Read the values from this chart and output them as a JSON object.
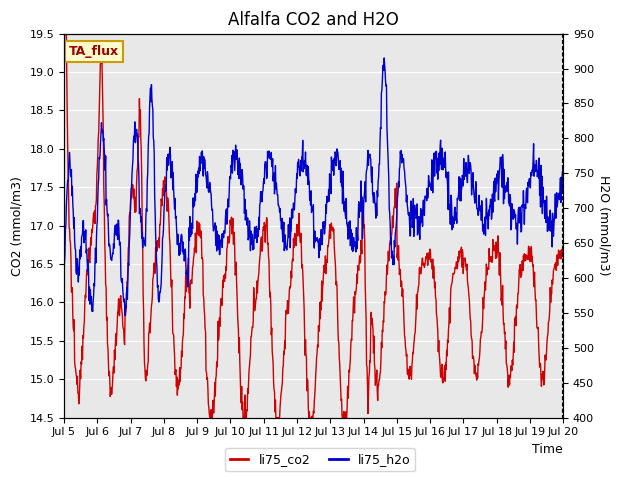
{
  "title": "Alfalfa CO2 and H2O",
  "xlabel": "Time",
  "ylabel_left": "CO2 (mmol/m3)",
  "ylabel_right": "H2O (mmol/m3)",
  "ylim_left": [
    14.5,
    19.5
  ],
  "ylim_right": [
    400,
    950
  ],
  "xlim": [
    0,
    360
  ],
  "xtick_positions": [
    0,
    24,
    48,
    72,
    96,
    120,
    144,
    168,
    192,
    216,
    240,
    264,
    288,
    312,
    336,
    360
  ],
  "xtick_labels": [
    "Jul 5",
    "Jul 6",
    "Jul 7",
    "Jul 8",
    "Jul 9",
    "Jul 10",
    "Jul 11",
    "Jul 12",
    "Jul 13",
    "Jul 14",
    "Jul 15",
    "Jul 16",
    "Jul 17",
    "Jul 18",
    "Jul 19",
    "Jul 20"
  ],
  "legend_labels": [
    "li75_co2",
    "li75_h2o"
  ],
  "legend_colors": [
    "#cc0000",
    "#0000cc"
  ],
  "annotation_text": "TA_flux",
  "annotation_bg": "#ffffcc",
  "annotation_border": "#cc9900",
  "plot_bg": "#e8e8e8",
  "fig_bg": "#ffffff",
  "title_fontsize": 12,
  "axis_label_fontsize": 9,
  "tick_fontsize": 8,
  "line_color_co2": "#cc0000",
  "line_color_h2o": "#0000cc",
  "line_width": 1.0,
  "yticks_left": [
    14.5,
    15.0,
    15.5,
    16.0,
    16.5,
    17.0,
    17.5,
    18.0,
    18.5,
    19.0,
    19.5
  ],
  "yticks_right": [
    400,
    450,
    500,
    550,
    600,
    650,
    700,
    750,
    800,
    850,
    900,
    950
  ]
}
